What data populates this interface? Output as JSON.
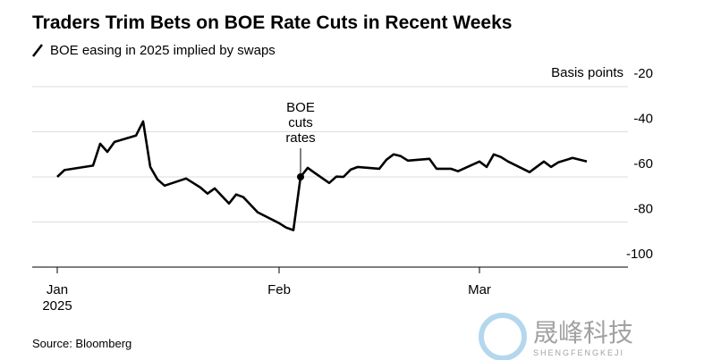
{
  "chart_data": {
    "type": "line",
    "title": "Traders Trim Bets on BOE Rate Cuts in Recent Weeks",
    "y_axis_label": "Basis points",
    "source": "Source: Bloomberg",
    "watermark": [
      "晟峰科技",
      "SHENGFENGKEJI"
    ],
    "annotation": {
      "text": "BOE cuts rates",
      "x": "2025-02-04"
    },
    "x": [
      "2025-01-01",
      "2025-01-02",
      "2025-01-04",
      "2025-01-06",
      "2025-01-07",
      "2025-01-08",
      "2025-01-09",
      "2025-01-12",
      "2025-01-13",
      "2025-01-14",
      "2025-01-15",
      "2025-01-16",
      "2025-01-19",
      "2025-01-20",
      "2025-01-21",
      "2025-01-22",
      "2025-01-23",
      "2025-01-25",
      "2025-01-26",
      "2025-01-27",
      "2025-01-29",
      "2025-02-01",
      "2025-02-02",
      "2025-02-03",
      "2025-02-04",
      "2025-02-05",
      "2025-02-06",
      "2025-02-08",
      "2025-02-09",
      "2025-02-10",
      "2025-02-11",
      "2025-02-12",
      "2025-02-15",
      "2025-02-16",
      "2025-02-17",
      "2025-02-18",
      "2025-02-19",
      "2025-02-22",
      "2025-02-23",
      "2025-02-25",
      "2025-02-26",
      "2025-03-01",
      "2025-03-02",
      "2025-03-03",
      "2025-03-04",
      "2025-03-05",
      "2025-03-08",
      "2025-03-10",
      "2025-03-11",
      "2025-03-12",
      "2025-03-14",
      "2025-03-16"
    ],
    "series": [
      {
        "name": "BOE easing in 2025 implied by swaps",
        "color": "#000000",
        "values": [
          -60,
          -57,
          -56,
          -55,
          -45.3,
          -48.9,
          -44.5,
          -41.7,
          -35.4,
          -55.6,
          -61.1,
          -63.9,
          -60.7,
          -62.7,
          -64.7,
          -67.4,
          -65.1,
          -71.8,
          -67.8,
          -69,
          -75.7,
          -80.5,
          -82.5,
          -83.6,
          -60,
          -56,
          -58.3,
          -62.7,
          -59.9,
          -60,
          -56.8,
          -55.6,
          -56.4,
          -52.4,
          -50,
          -50.8,
          -52.8,
          -52,
          -56.4,
          -56.4,
          -57.5,
          -53.2,
          -55.6,
          -50,
          -51.2,
          -53.2,
          -57.9,
          -53.2,
          -55.6,
          -53.6,
          -51.6,
          -53.2
        ]
      }
    ],
    "xlim": [
      "2025-01-01",
      "2025-03-16"
    ],
    "xticks": [
      {
        "value": "2025-01-01",
        "label": "Jan 2025"
      },
      {
        "value": "2025-02-01",
        "label": "Feb"
      },
      {
        "value": "2025-03-01",
        "label": "Mar"
      }
    ],
    "ylim": [
      -100,
      -20
    ],
    "yticks": [
      -20,
      -40,
      -60,
      -80,
      -100
    ],
    "grid": true
  }
}
